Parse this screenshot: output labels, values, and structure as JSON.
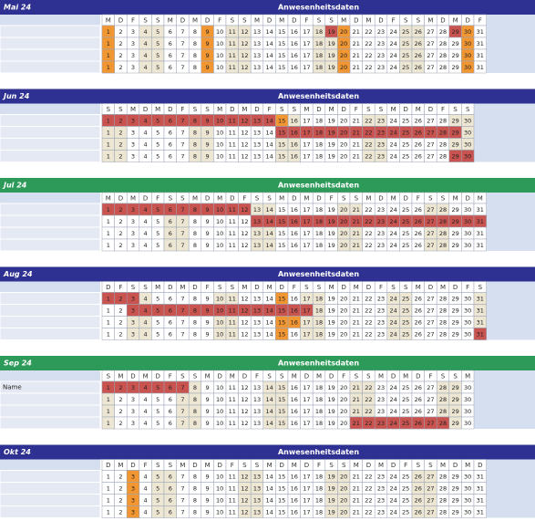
{
  "months": [
    {
      "name": "Mai 24",
      "title": "Anwesenheitsdaten",
      "color": "#2e3192",
      "weekdays": [
        "M",
        "D",
        "F",
        "S",
        "S",
        "M",
        "D",
        "M",
        "D",
        "F",
        "S",
        "S",
        "M",
        "D",
        "M",
        "D",
        "F",
        "S",
        "S",
        "M",
        "D",
        "M",
        "D",
        "F",
        "S",
        "S",
        "M",
        "D",
        "M",
        "D",
        "F"
      ],
      "days": [
        1,
        2,
        3,
        4,
        5,
        6,
        7,
        8,
        9,
        10,
        11,
        12,
        13,
        14,
        15,
        16,
        17,
        18,
        19,
        20,
        21,
        22,
        23,
        24,
        25,
        26,
        27,
        28,
        29,
        30,
        31
      ],
      "rows": [
        {
          "red": [
            19,
            29
          ],
          "orange": [
            1,
            9,
            20,
            30
          ]
        },
        {
          "red": [],
          "orange": [
            1,
            9,
            20,
            30
          ]
        },
        {
          "red": [],
          "orange": [
            1,
            9,
            20,
            30
          ]
        },
        {
          "red": [],
          "orange": [
            1,
            9,
            20,
            30
          ]
        }
      ]
    },
    {
      "name": "Jun 24",
      "title": "Anwesenheitsdaten",
      "color": "#2e3192",
      "weekdays": [
        "S",
        "S",
        "M",
        "D",
        "M",
        "D",
        "F",
        "S",
        "S",
        "M",
        "D",
        "M",
        "D",
        "F",
        "S",
        "S",
        "M",
        "D",
        "M",
        "D",
        "F",
        "S",
        "S",
        "M",
        "D",
        "M",
        "D",
        "F",
        "S",
        "S"
      ],
      "days": [
        1,
        2,
        3,
        4,
        5,
        6,
        7,
        8,
        9,
        10,
        11,
        12,
        13,
        14,
        15,
        16,
        17,
        18,
        19,
        20,
        21,
        22,
        23,
        24,
        25,
        26,
        27,
        28,
        29,
        30
      ],
      "rows": [
        {
          "red": [
            1,
            2,
            3,
            4,
            5,
            6,
            7,
            8,
            9,
            10,
            11,
            12,
            13,
            14
          ],
          "orange": [
            15
          ]
        },
        {
          "red": [
            15,
            16,
            17,
            18,
            19,
            20,
            21,
            22,
            23,
            24,
            25,
            26,
            27,
            28,
            29
          ],
          "orange": []
        },
        {
          "red": [],
          "orange": []
        },
        {
          "red": [
            29,
            30
          ],
          "orange": []
        }
      ]
    },
    {
      "name": "Jul 24",
      "title": "Anwesenheitsdaten",
      "color": "#2e9a5a",
      "weekdays": [
        "M",
        "D",
        "M",
        "D",
        "F",
        "S",
        "S",
        "M",
        "D",
        "M",
        "D",
        "F",
        "S",
        "S",
        "M",
        "D",
        "M",
        "D",
        "F",
        "S",
        "S",
        "M",
        "D",
        "M",
        "D",
        "F",
        "S",
        "S",
        "M",
        "D",
        "M"
      ],
      "days": [
        1,
        2,
        3,
        4,
        5,
        6,
        7,
        8,
        9,
        10,
        11,
        12,
        13,
        14,
        15,
        16,
        17,
        18,
        19,
        20,
        21,
        22,
        23,
        24,
        25,
        26,
        27,
        28,
        29,
        30,
        31
      ],
      "rows": [
        {
          "red": [
            1,
            2,
            3,
            4,
            5,
            6,
            7,
            8,
            9,
            10,
            11,
            12
          ],
          "orange": []
        },
        {
          "red": [
            13,
            14,
            15,
            16,
            17,
            18,
            19,
            20,
            21,
            22,
            23,
            24,
            25,
            26,
            27,
            28,
            29,
            30,
            31
          ],
          "orange": []
        },
        {
          "red": [],
          "orange": []
        },
        {
          "red": [],
          "orange": []
        }
      ]
    },
    {
      "name": "Aug 24",
      "title": "Anwesenheitsdaten",
      "color": "#2e3192",
      "weekdays": [
        "D",
        "F",
        "S",
        "S",
        "M",
        "D",
        "M",
        "D",
        "F",
        "S",
        "S",
        "M",
        "D",
        "M",
        "D",
        "F",
        "S",
        "S",
        "M",
        "D",
        "M",
        "D",
        "F",
        "S",
        "S",
        "M",
        "D",
        "M",
        "D",
        "F",
        "S"
      ],
      "days": [
        1,
        2,
        3,
        4,
        5,
        6,
        7,
        8,
        9,
        10,
        11,
        12,
        13,
        14,
        15,
        16,
        17,
        18,
        19,
        20,
        21,
        22,
        23,
        24,
        25,
        26,
        27,
        28,
        29,
        30,
        31
      ],
      "rows": [
        {
          "red": [
            1,
            2,
            3
          ],
          "orange": [
            15
          ]
        },
        {
          "red": [
            3,
            4,
            5,
            6,
            7,
            8,
            9,
            10,
            11,
            12,
            13,
            14,
            15,
            16,
            17
          ],
          "orange": []
        },
        {
          "red": [],
          "orange": [
            15,
            16
          ]
        },
        {
          "red": [
            31
          ],
          "orange": [
            15
          ]
        }
      ]
    },
    {
      "name": "Sep 24",
      "title": "Anwesenheitsdaten",
      "color": "#2e9a5a",
      "weekdays": [
        "S",
        "M",
        "D",
        "M",
        "D",
        "F",
        "S",
        "S",
        "M",
        "D",
        "M",
        "D",
        "F",
        "S",
        "S",
        "M",
        "D",
        "M",
        "D",
        "F",
        "S",
        "S",
        "M",
        "D",
        "M",
        "D",
        "F",
        "S",
        "S",
        "M"
      ],
      "days": [
        1,
        2,
        3,
        4,
        5,
        6,
        7,
        8,
        9,
        10,
        11,
        12,
        13,
        14,
        15,
        16,
        17,
        18,
        19,
        20,
        21,
        22,
        23,
        24,
        25,
        26,
        27,
        28,
        29,
        30
      ],
      "rows": [
        {
          "label": "Name",
          "red": [
            1,
            2,
            3,
            4,
            5,
            6,
            7
          ],
          "orange": []
        },
        {
          "red": [],
          "orange": []
        },
        {
          "red": [],
          "orange": []
        },
        {
          "red": [
            21,
            22,
            23,
            24,
            25,
            26,
            27,
            28
          ],
          "orange": []
        }
      ]
    },
    {
      "name": "Okt 24",
      "title": "Anwesenheitsdaten",
      "color": "#2e3192",
      "weekdays": [
        "D",
        "M",
        "D",
        "F",
        "S",
        "S",
        "M",
        "D",
        "M",
        "D",
        "F",
        "S",
        "S",
        "M",
        "D",
        "M",
        "D",
        "F",
        "S",
        "S",
        "M",
        "D",
        "M",
        "D",
        "F",
        "S",
        "S",
        "M",
        "D",
        "M",
        "D"
      ],
      "days": [
        1,
        2,
        3,
        4,
        5,
        6,
        7,
        8,
        9,
        10,
        11,
        12,
        13,
        14,
        15,
        16,
        17,
        18,
        19,
        20,
        21,
        22,
        23,
        24,
        25,
        26,
        27,
        28,
        29,
        30,
        31
      ],
      "rows": [
        {
          "red": [],
          "orange": [
            3
          ]
        },
        {
          "red": [],
          "orange": [
            3
          ]
        },
        {
          "red": [],
          "orange": [
            3
          ]
        },
        {
          "red": [],
          "orange": [
            3
          ]
        }
      ]
    }
  ]
}
